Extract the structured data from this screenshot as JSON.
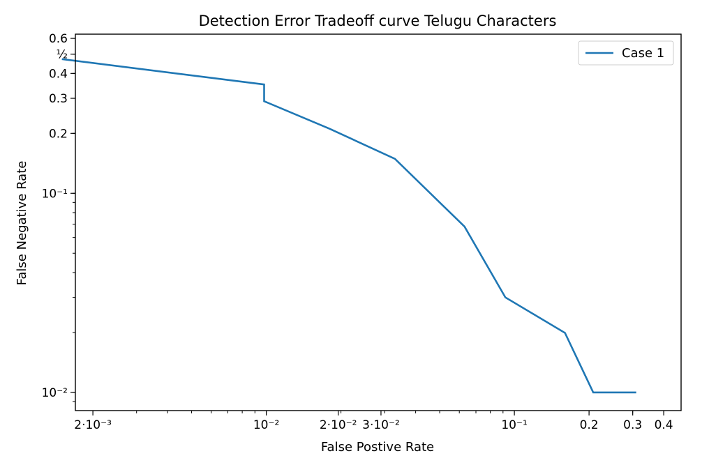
{
  "chart_data": {
    "type": "line",
    "title": "Detection Error Tradeoff curve Telugu Characters",
    "xlabel": "False Postive Rate",
    "ylabel": "False Negative Rate",
    "xscale": "log",
    "yscale": "log",
    "xlim": [
      0.0017,
      0.47
    ],
    "ylim": [
      0.0081,
      0.63
    ],
    "grid": false,
    "legend_position": "top-right",
    "series": [
      {
        "name": "Case 1",
        "color": "#1f77b4",
        "x": [
          0.0015,
          0.0098,
          0.0098,
          0.018,
          0.033,
          0.063,
          0.092,
          0.16,
          0.208,
          0.31
        ],
        "y": [
          0.472,
          0.352,
          0.29,
          0.211,
          0.149,
          0.068,
          0.03,
          0.0199,
          0.01,
          0.01
        ]
      }
    ],
    "x_ticks": [
      {
        "value": 0.002,
        "label": "2·10⁻³"
      },
      {
        "value": 0.01,
        "label": "10⁻²"
      },
      {
        "value": 0.0195,
        "label": "2·10⁻²"
      },
      {
        "value": 0.029,
        "label": "3·10⁻²"
      },
      {
        "value": 0.1,
        "label": "10⁻¹"
      },
      {
        "value": 0.2,
        "label": "0.2"
      },
      {
        "value": 0.3,
        "label": "0.3"
      },
      {
        "value": 0.4,
        "label": "0.4"
      }
    ],
    "y_ticks": [
      {
        "value": 0.01,
        "label": "10⁻²"
      },
      {
        "value": 0.1,
        "label": "10⁻¹"
      },
      {
        "value": 0.2,
        "label": "0.2"
      },
      {
        "value": 0.3,
        "label": "0.3"
      },
      {
        "value": 0.4,
        "label": "0.4"
      },
      {
        "value": 0.5,
        "label": "½"
      },
      {
        "value": 0.6,
        "label": "0.6"
      }
    ]
  }
}
